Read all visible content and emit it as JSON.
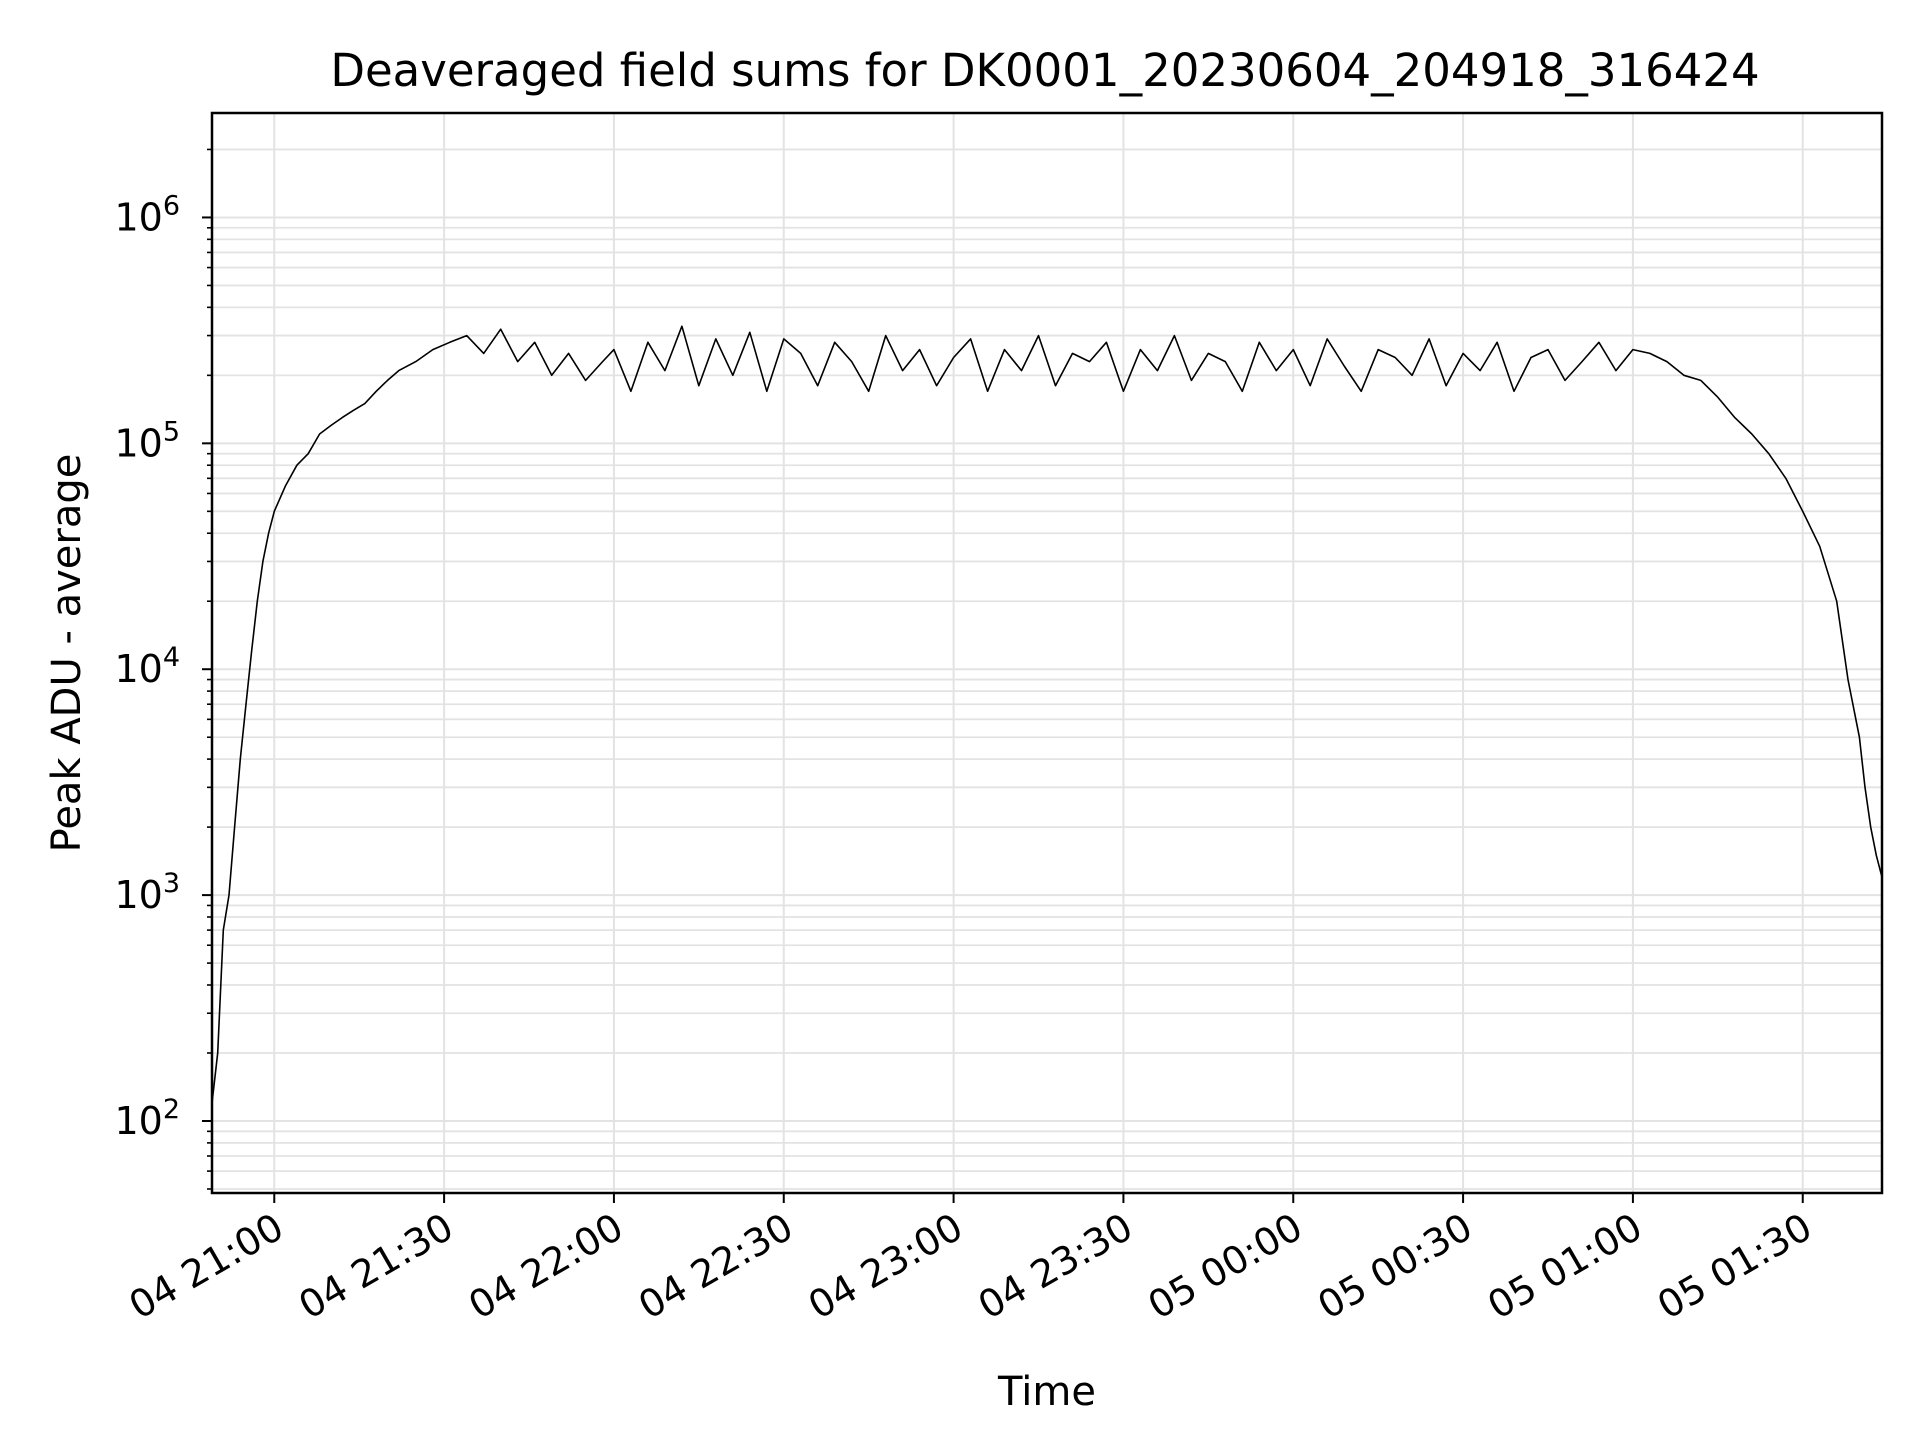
{
  "chart_data": {
    "type": "line",
    "title": "Deaveraged field sums for DK0001_20230604_204918_316424",
    "xlabel": "Time",
    "ylabel": "Peak ADU - average",
    "y_scale": "log",
    "ylim": [
      48,
      2900000
    ],
    "xlim": [
      "2023-06-04 20:49",
      "2023-06-05 01:44"
    ],
    "grid": true,
    "grid_color": "#e3e3e3",
    "line_color": "#000000",
    "x_ticks": [
      {
        "value": "2023-06-04 21:00",
        "label": "04 21:00"
      },
      {
        "value": "2023-06-04 21:30",
        "label": "04 21:30"
      },
      {
        "value": "2023-06-04 22:00",
        "label": "04 22:00"
      },
      {
        "value": "2023-06-04 22:30",
        "label": "04 22:30"
      },
      {
        "value": "2023-06-04 23:00",
        "label": "04 23:00"
      },
      {
        "value": "2023-06-04 23:30",
        "label": "04 23:30"
      },
      {
        "value": "2023-06-05 00:00",
        "label": "05 00:00"
      },
      {
        "value": "2023-06-05 00:30",
        "label": "05 00:30"
      },
      {
        "value": "2023-06-05 01:00",
        "label": "05 01:00"
      },
      {
        "value": "2023-06-05 01:30",
        "label": "05 01:30"
      }
    ],
    "y_ticks": [
      {
        "value": 100,
        "base": "10",
        "exp": "2"
      },
      {
        "value": 1000,
        "base": "10",
        "exp": "3"
      },
      {
        "value": 10000,
        "base": "10",
        "exp": "4"
      },
      {
        "value": 100000,
        "base": "10",
        "exp": "5"
      },
      {
        "value": 1000000,
        "base": "10",
        "exp": "6"
      }
    ],
    "series": [
      {
        "x": [
          "2023-06-04 20:49",
          "2023-06-04 20:50",
          "2023-06-04 20:51",
          "2023-06-04 20:52",
          "2023-06-04 20:53",
          "2023-06-04 20:54",
          "2023-06-04 20:55",
          "2023-06-04 20:56",
          "2023-06-04 20:57",
          "2023-06-04 20:58",
          "2023-06-04 20:59",
          "2023-06-04 21:00",
          "2023-06-04 21:02",
          "2023-06-04 21:04",
          "2023-06-04 21:06",
          "2023-06-04 21:08",
          "2023-06-04 21:10",
          "2023-06-04 21:12",
          "2023-06-04 21:14",
          "2023-06-04 21:16",
          "2023-06-04 21:18",
          "2023-06-04 21:20",
          "2023-06-04 21:22",
          "2023-06-04 21:25",
          "2023-06-04 21:28",
          "2023-06-04 21:31",
          "2023-06-04 21:34",
          "2023-06-04 21:37",
          "2023-06-04 21:40",
          "2023-06-04 21:43",
          "2023-06-04 21:46",
          "2023-06-04 21:49",
          "2023-06-04 21:52",
          "2023-06-04 21:55",
          "2023-06-04 21:58",
          "2023-06-04 22:00",
          "2023-06-04 22:03",
          "2023-06-04 22:06",
          "2023-06-04 22:09",
          "2023-06-04 22:12",
          "2023-06-04 22:15",
          "2023-06-04 22:18",
          "2023-06-04 22:21",
          "2023-06-04 22:24",
          "2023-06-04 22:27",
          "2023-06-04 22:30",
          "2023-06-04 22:33",
          "2023-06-04 22:36",
          "2023-06-04 22:39",
          "2023-06-04 22:42",
          "2023-06-04 22:45",
          "2023-06-04 22:48",
          "2023-06-04 22:51",
          "2023-06-04 22:54",
          "2023-06-04 22:57",
          "2023-06-04 23:00",
          "2023-06-04 23:03",
          "2023-06-04 23:06",
          "2023-06-04 23:09",
          "2023-06-04 23:12",
          "2023-06-04 23:15",
          "2023-06-04 23:18",
          "2023-06-04 23:21",
          "2023-06-04 23:24",
          "2023-06-04 23:27",
          "2023-06-04 23:30",
          "2023-06-04 23:33",
          "2023-06-04 23:36",
          "2023-06-04 23:39",
          "2023-06-04 23:42",
          "2023-06-04 23:45",
          "2023-06-04 23:48",
          "2023-06-04 23:51",
          "2023-06-04 23:54",
          "2023-06-04 23:57",
          "2023-06-05 00:00",
          "2023-06-05 00:03",
          "2023-06-05 00:06",
          "2023-06-05 00:09",
          "2023-06-05 00:12",
          "2023-06-05 00:15",
          "2023-06-05 00:18",
          "2023-06-05 00:21",
          "2023-06-05 00:24",
          "2023-06-05 00:27",
          "2023-06-05 00:30",
          "2023-06-05 00:33",
          "2023-06-05 00:36",
          "2023-06-05 00:39",
          "2023-06-05 00:42",
          "2023-06-05 00:45",
          "2023-06-05 00:48",
          "2023-06-05 00:51",
          "2023-06-05 00:54",
          "2023-06-05 00:57",
          "2023-06-05 01:00",
          "2023-06-05 01:03",
          "2023-06-05 01:06",
          "2023-06-05 01:09",
          "2023-06-05 01:12",
          "2023-06-05 01:15",
          "2023-06-05 01:18",
          "2023-06-05 01:21",
          "2023-06-05 01:24",
          "2023-06-05 01:27",
          "2023-06-05 01:30",
          "2023-06-05 01:33",
          "2023-06-05 01:36",
          "2023-06-05 01:38",
          "2023-06-05 01:40",
          "2023-06-05 01:41",
          "2023-06-05 01:42",
          "2023-06-05 01:43",
          "2023-06-05 01:44"
        ],
        "y": [
          120,
          200,
          700,
          1000,
          2000,
          4000,
          7000,
          12000,
          20000,
          30000,
          40000,
          50000,
          65000,
          80000,
          90000,
          110000,
          120000,
          130000,
          140000,
          150000,
          170000,
          190000,
          210000,
          230000,
          260000,
          280000,
          300000,
          250000,
          320000,
          230000,
          280000,
          200000,
          250000,
          190000,
          230000,
          260000,
          170000,
          280000,
          210000,
          330000,
          180000,
          290000,
          200000,
          310000,
          170000,
          290000,
          250000,
          180000,
          280000,
          230000,
          170000,
          300000,
          210000,
          260000,
          180000,
          240000,
          290000,
          170000,
          260000,
          210000,
          300000,
          180000,
          250000,
          230000,
          280000,
          170000,
          260000,
          210000,
          300000,
          190000,
          250000,
          230000,
          170000,
          280000,
          210000,
          260000,
          180000,
          290000,
          220000,
          170000,
          260000,
          240000,
          200000,
          290000,
          180000,
          250000,
          210000,
          280000,
          170000,
          240000,
          260000,
          190000,
          230000,
          280000,
          210000,
          260000,
          250000,
          230000,
          200000,
          190000,
          160000,
          130000,
          110000,
          90000,
          70000,
          50000,
          35000,
          20000,
          9000,
          5000,
          3000,
          2000,
          1500,
          1200
        ]
      }
    ]
  }
}
